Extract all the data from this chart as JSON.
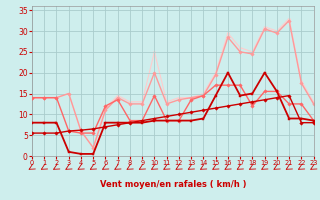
{
  "bg_color": "#ceeeed",
  "grid_color": "#aacccc",
  "xlabel": "Vent moyen/en rafales ( km/h )",
  "ylabel_ticks": [
    0,
    5,
    10,
    15,
    20,
    25,
    30,
    35
  ],
  "x_ticks": [
    0,
    1,
    2,
    3,
    4,
    5,
    6,
    7,
    8,
    9,
    10,
    11,
    12,
    13,
    14,
    15,
    16,
    17,
    18,
    19,
    20,
    21,
    22,
    23
  ],
  "xlim": [
    0,
    23
  ],
  "ylim": [
    0,
    36
  ],
  "series": [
    {
      "x": [
        0,
        1,
        2,
        3,
        4,
        5,
        6,
        7,
        8,
        9,
        10,
        11,
        12,
        13,
        14,
        15,
        16,
        17,
        18,
        19,
        20,
        21,
        22,
        23
      ],
      "y": [
        5.5,
        5.5,
        5.5,
        6.0,
        6.2,
        6.5,
        7.0,
        7.5,
        8.0,
        8.5,
        9.0,
        9.5,
        10.0,
        10.5,
        11.0,
        11.5,
        12.0,
        12.5,
        13.0,
        13.5,
        14.0,
        14.5,
        8.0,
        8.0
      ],
      "color": "#cc0000",
      "lw": 1.0,
      "marker": "D",
      "ms": 1.8,
      "zorder": 5
    },
    {
      "x": [
        0,
        1,
        2,
        3,
        4,
        5,
        6,
        7,
        8,
        9,
        10,
        11,
        12,
        13,
        14,
        15,
        16,
        17,
        18,
        19,
        20,
        21,
        22,
        23
      ],
      "y": [
        8.0,
        8.0,
        8.0,
        1.0,
        0.5,
        0.5,
        8.0,
        8.0,
        8.0,
        8.0,
        8.5,
        8.5,
        8.5,
        8.5,
        9.0,
        14.5,
        20.0,
        14.5,
        15.0,
        20.0,
        15.5,
        9.0,
        9.0,
        8.5
      ],
      "color": "#cc0000",
      "lw": 1.3,
      "marker": "s",
      "ms": 2.0,
      "zorder": 4
    },
    {
      "x": [
        0,
        1,
        2,
        3,
        4,
        5,
        6,
        7,
        8,
        9,
        10,
        11,
        12,
        13,
        14,
        15,
        16,
        17,
        18,
        19,
        20,
        21,
        22,
        23
      ],
      "y": [
        14.0,
        14.0,
        14.0,
        6.0,
        5.5,
        5.5,
        12.0,
        13.5,
        8.5,
        8.5,
        14.5,
        8.5,
        8.5,
        13.5,
        14.5,
        17.0,
        17.0,
        17.0,
        12.0,
        15.5,
        15.5,
        12.5,
        12.5,
        8.5
      ],
      "color": "#ff6666",
      "lw": 1.0,
      "marker": "D",
      "ms": 1.8,
      "zorder": 3
    },
    {
      "x": [
        0,
        1,
        2,
        3,
        4,
        5,
        6,
        7,
        8,
        9,
        10,
        11,
        12,
        13,
        14,
        15,
        16,
        17,
        18,
        19,
        20,
        21,
        22,
        23
      ],
      "y": [
        14.0,
        14.0,
        14.0,
        15.0,
        6.0,
        2.0,
        11.0,
        14.0,
        12.5,
        12.5,
        20.0,
        12.5,
        13.5,
        14.0,
        14.5,
        19.5,
        28.5,
        25.0,
        24.5,
        30.5,
        29.5,
        32.5,
        17.5,
        12.5
      ],
      "color": "#ff9999",
      "lw": 1.0,
      "marker": "D",
      "ms": 1.8,
      "zorder": 2
    },
    {
      "x": [
        0,
        1,
        2,
        3,
        4,
        5,
        6,
        7,
        8,
        9,
        10,
        11,
        12,
        13,
        14,
        15,
        16,
        17,
        18,
        19,
        20,
        21,
        22,
        23
      ],
      "y": [
        14.0,
        14.0,
        14.0,
        15.0,
        6.0,
        2.0,
        11.5,
        14.5,
        13.0,
        13.0,
        25.0,
        13.0,
        14.0,
        14.0,
        15.0,
        20.0,
        29.5,
        26.0,
        25.0,
        31.0,
        30.0,
        33.0,
        18.0,
        13.0
      ],
      "color": "#ffcccc",
      "lw": 0.8,
      "marker": "D",
      "ms": 1.5,
      "zorder": 1
    }
  ],
  "label_color": "#cc0000",
  "tick_color": "#cc0000",
  "xlabel_fontsize": 6.0,
  "xlabel_fontweight": "bold",
  "ytick_fontsize": 5.5,
  "xtick_fontsize": 4.8
}
